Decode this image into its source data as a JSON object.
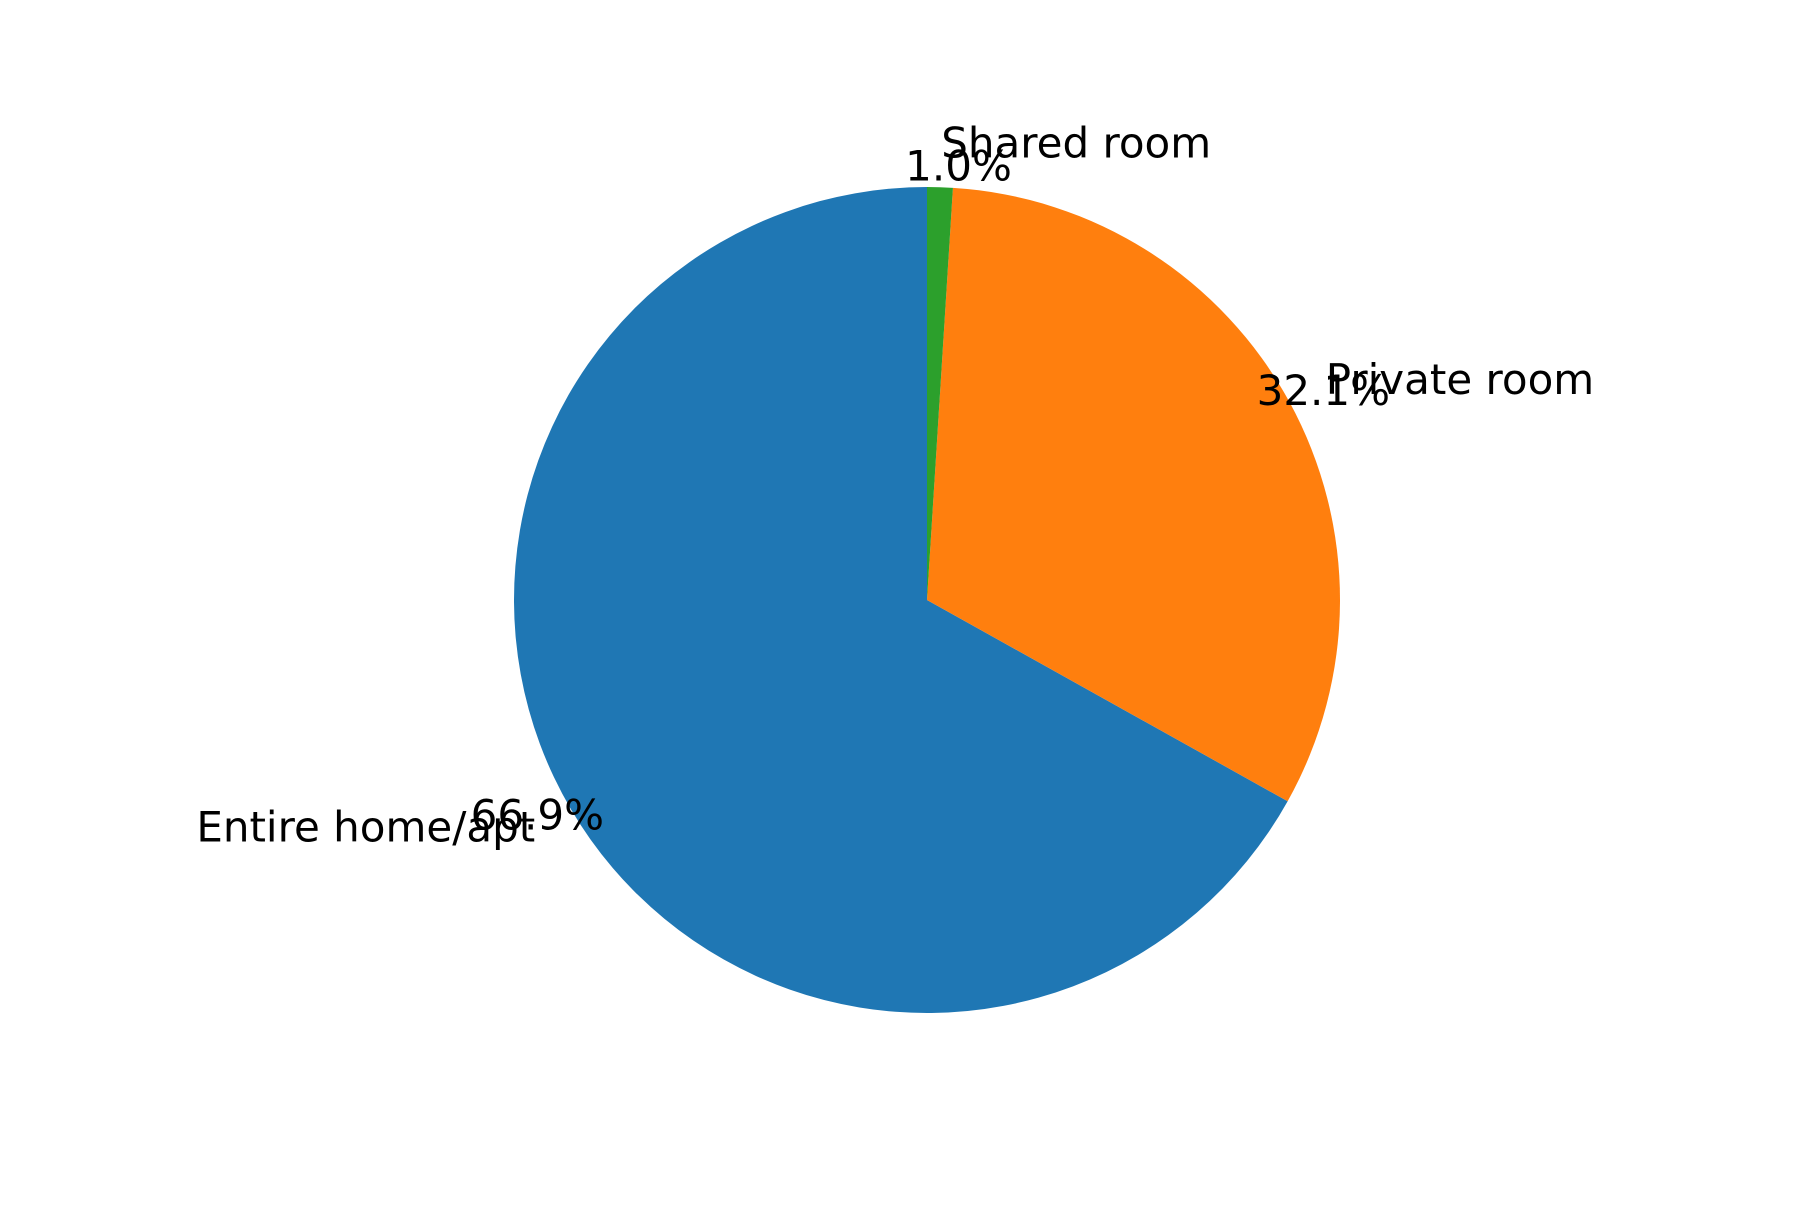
{
  "chart_data": {
    "type": "pie",
    "title": "",
    "start_angle_deg": 90,
    "direction": "clockwise",
    "slices": [
      {
        "label": "Entire home/apt",
        "value": 66.9,
        "pct_label": "66.9%",
        "color": "#1f77b4"
      },
      {
        "label": "Private room",
        "value": 32.1,
        "pct_label": "32.1%",
        "color": "#ff7f0e"
      },
      {
        "label": "Shared room",
        "value": 1.0,
        "pct_label": "1.0%",
        "color": "#2ca02c"
      }
    ]
  }
}
